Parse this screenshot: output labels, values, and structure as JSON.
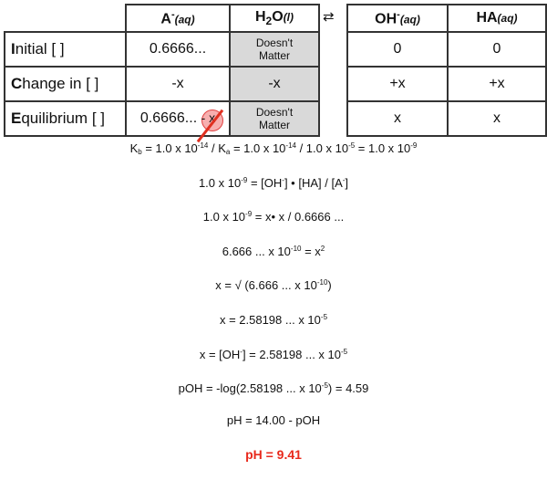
{
  "table": {
    "headers": {
      "a": {
        "main": "A",
        "sup": "-",
        "state": "(aq)"
      },
      "h2o": {
        "main1": "H",
        "sub": "2",
        "main2": "O",
        "state": "(l)"
      },
      "oh": {
        "main": "OH",
        "sup": "-",
        "state": "(aq)"
      },
      "ha": {
        "main": "HA",
        "state": "(aq)"
      }
    },
    "equilibrium_arrow": "⇄",
    "rows": [
      {
        "initial_letter": "I",
        "rest": "nitial [ ]",
        "a": "0.6666...",
        "h2o": [
          "Doesn't",
          "Matter"
        ],
        "oh": "0",
        "ha": "0"
      },
      {
        "initial_letter": "C",
        "rest": "hange in [ ]",
        "a": "-x",
        "h2o": [
          "-x"
        ],
        "oh": "+x",
        "ha": "+x"
      },
      {
        "initial_letter": "E",
        "rest": "quilibrium [ ]",
        "a": "0.6666... ",
        "a_crossed": "- x",
        "h2o": [
          "Doesn't",
          "Matter"
        ],
        "oh": "x",
        "ha": "x"
      }
    ]
  },
  "equations": [
    [
      {
        "t": "K"
      },
      {
        "sub": "b"
      },
      {
        "t": " = 1.0 x 10"
      },
      {
        "sup": "-14"
      },
      {
        "t": " / K"
      },
      {
        "sub": "a"
      },
      {
        "t": " = 1.0 x 10"
      },
      {
        "sup": "-14"
      },
      {
        "t": " / 1.0 x 10"
      },
      {
        "sup": "-5"
      },
      {
        "t": " = 1.0 x 10"
      },
      {
        "sup": "-9"
      }
    ],
    [
      {
        "t": "1.0 x 10"
      },
      {
        "sup": "-9"
      },
      {
        "t": " = [OH"
      },
      {
        "sup": "-"
      },
      {
        "t": "] • [HA] / [A"
      },
      {
        "sup": "-"
      },
      {
        "t": "]"
      }
    ],
    [
      {
        "t": "1.0 x 10"
      },
      {
        "sup": "-9"
      },
      {
        "t": " = x• x / 0.6666 ..."
      }
    ],
    [
      {
        "t": "6.666 ... x 10"
      },
      {
        "sup": "-10"
      },
      {
        "t": " = x"
      },
      {
        "sup": "2"
      }
    ],
    [
      {
        "t": "x = √ (6.666 ... x 10"
      },
      {
        "sup": "-10"
      },
      {
        "t": ")"
      }
    ],
    [
      {
        "t": "x = 2.58198 ... x 10"
      },
      {
        "sup": "-5"
      }
    ],
    [
      {
        "t": "x = [OH"
      },
      {
        "sup": "-"
      },
      {
        "t": "] = 2.58198 ... x 10"
      },
      {
        "sup": "-5"
      }
    ],
    [
      {
        "t": "pOH = -log(2.58198 ... x 10"
      },
      {
        "sup": "-5"
      },
      {
        "t": ") = 4.59"
      }
    ],
    [
      {
        "t": "pH = 14.00 - pOH"
      }
    ]
  ],
  "answer": "pH = 9.41",
  "colors": {
    "answer": "#e8291c",
    "grey_cell": "#d9d9d9",
    "cross": "#e03020"
  }
}
